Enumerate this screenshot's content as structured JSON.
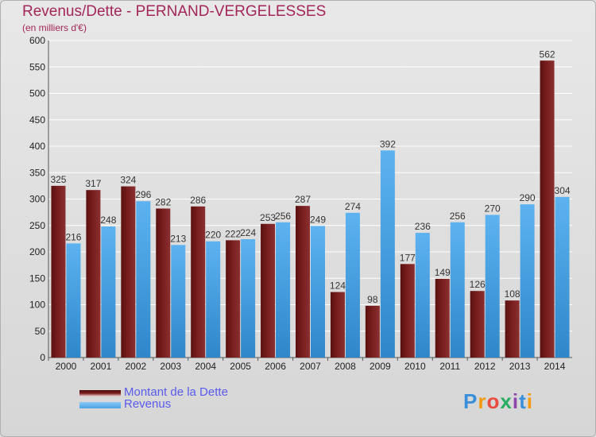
{
  "title": "Revenus/Dette - PERNAND-VERGELESSES",
  "subtitle": "(en milliers d'€)",
  "colors": {
    "dette": "#7a1f1f",
    "revenus": "#4aa3e3",
    "title": "#a3265a",
    "legend_text": "#5a5aee"
  },
  "legend": {
    "dette_label": "Montant de la Dette",
    "revenus_label": "Revenus"
  },
  "logo": {
    "letters": [
      "P",
      "r",
      "o",
      "x",
      "i",
      "t",
      "i"
    ],
    "colors": [
      "#3a8fd8",
      "#f39c12",
      "#e74c3c",
      "#27ae60",
      "#8e44ad",
      "#3a8fd8",
      "#f39c12"
    ]
  },
  "chart_data": {
    "type": "bar",
    "categories": [
      "2000",
      "2001",
      "2002",
      "2003",
      "2004",
      "2005",
      "2006",
      "2007",
      "2008",
      "2009",
      "2010",
      "2011",
      "2012",
      "2013",
      "2014"
    ],
    "series": [
      {
        "name": "Montant de la Dette",
        "values": [
          325,
          317,
          324,
          282,
          286,
          222,
          253,
          287,
          124,
          98,
          177,
          149,
          126,
          108,
          562
        ]
      },
      {
        "name": "Revenus",
        "values": [
          216,
          248,
          296,
          213,
          220,
          224,
          256,
          249,
          274,
          392,
          236,
          256,
          270,
          290,
          304
        ]
      }
    ],
    "ylim": [
      0,
      600
    ],
    "yticks": [
      0,
      50,
      100,
      150,
      200,
      250,
      300,
      350,
      400,
      450,
      500,
      550,
      600
    ],
    "grid": true,
    "legend_position": "bottom-left"
  }
}
